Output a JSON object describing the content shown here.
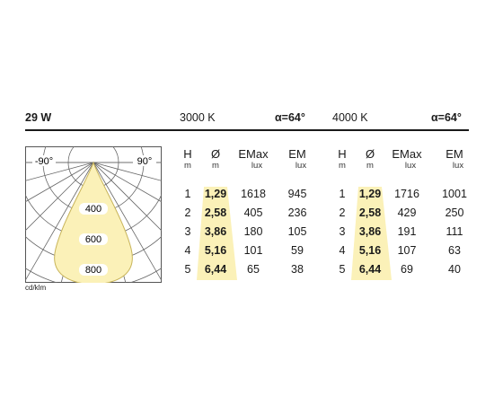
{
  "power": "29 W",
  "unit_label": "cd/klm",
  "colors": {
    "cone_fill": "#fbf1b8",
    "cone_stroke": "#c8b45a",
    "polar_lines": "#666666",
    "table_text": "#1a1a1a"
  },
  "chart_data": {
    "type": "polar",
    "angle_labels": [
      "-90°",
      "90°"
    ],
    "ring_labels": [
      "400",
      "600",
      "800"
    ],
    "beam_angle_deg": 64
  },
  "groups": [
    {
      "id": "3000k",
      "cct": "3000 K",
      "angle": "α=64°",
      "headers": {
        "h": "H",
        "h_unit": "m",
        "d": "Ø",
        "d_unit": "m",
        "emax": "EMax",
        "emax_unit": "lux",
        "em": "EM",
        "em_unit": "lux"
      },
      "rows": [
        {
          "h": "1",
          "d": "1,29",
          "emax": "1618",
          "em": "945"
        },
        {
          "h": "2",
          "d": "2,58",
          "emax": "405",
          "em": "236"
        },
        {
          "h": "3",
          "d": "3,86",
          "emax": "180",
          "em": "105"
        },
        {
          "h": "4",
          "d": "5,16",
          "emax": "101",
          "em": "59"
        },
        {
          "h": "5",
          "d": "6,44",
          "emax": "65",
          "em": "38"
        }
      ]
    },
    {
      "id": "4000k",
      "cct": "4000 K",
      "angle": "α=64°",
      "headers": {
        "h": "H",
        "h_unit": "m",
        "d": "Ø",
        "d_unit": "m",
        "emax": "EMax",
        "emax_unit": "lux",
        "em": "EM",
        "em_unit": "lux"
      },
      "rows": [
        {
          "h": "1",
          "d": "1,29",
          "emax": "1716",
          "em": "1001"
        },
        {
          "h": "2",
          "d": "2,58",
          "emax": "429",
          "em": "250"
        },
        {
          "h": "3",
          "d": "3,86",
          "emax": "191",
          "em": "111"
        },
        {
          "h": "4",
          "d": "5,16",
          "emax": "107",
          "em": "63"
        },
        {
          "h": "5",
          "d": "6,44",
          "emax": "69",
          "em": "40"
        }
      ]
    }
  ]
}
